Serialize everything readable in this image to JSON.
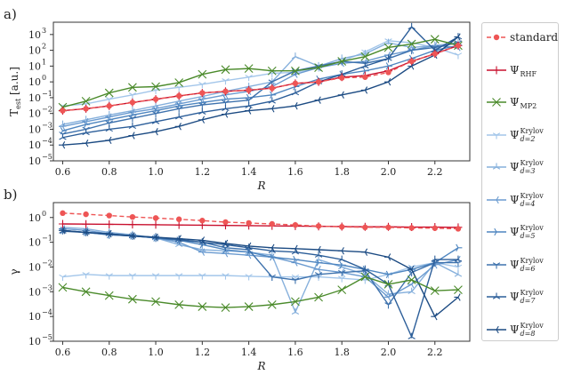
{
  "chart_data": [
    {
      "panel_label": "a)",
      "type": "line",
      "ylabel": "T",
      "ylabel_sub": "est",
      "ylabel_unit": "[a.u.]",
      "xlabel": "R",
      "yscale": "log",
      "ylim": [
        1e-05,
        6000
      ],
      "xlim": [
        0.56,
        2.35
      ],
      "xticks": [
        "0.6",
        "0.8",
        "1.0",
        "1.2",
        "1.4",
        "1.6",
        "1.8",
        "2.0",
        "2.2"
      ],
      "yticks": [
        "10",
        "10",
        "10",
        "10",
        "10",
        "10",
        "10",
        "10",
        "10"
      ],
      "ytick_exponents": [
        "−5",
        "−4",
        "−3",
        "−2",
        "−1",
        "0",
        "1",
        "2",
        "3"
      ],
      "x": [
        0.6,
        0.7,
        0.8,
        0.9,
        1.0,
        1.1,
        1.2,
        1.3,
        1.4,
        1.5,
        1.6,
        1.7,
        1.8,
        1.9,
        2.0,
        2.1,
        2.2,
        2.3
      ],
      "series": [
        {
          "name": "standard",
          "values": [
            0.015,
            0.02,
            0.03,
            0.05,
            0.08,
            0.13,
            0.2,
            0.25,
            0.3,
            0.4,
            0.8,
            1.0,
            1.8,
            2.0,
            4,
            20,
            60,
            200
          ]
        },
        {
          "name": "RHF",
          "values": [
            0.015,
            0.02,
            0.03,
            0.05,
            0.08,
            0.13,
            0.2,
            0.25,
            0.3,
            0.4,
            0.8,
            1.0,
            2,
            2.5,
            5,
            20,
            60,
            200
          ]
        },
        {
          "name": "MP2",
          "values": [
            0.025,
            0.06,
            0.2,
            0.45,
            0.5,
            0.9,
            3,
            6,
            7,
            5,
            5,
            8,
            20,
            40,
            150,
            250,
            500,
            200
          ]
        },
        {
          "name": "d2",
          "values": [
            0.03,
            0.04,
            0.08,
            0.15,
            0.3,
            0.45,
            0.7,
            1.2,
            2,
            3.5,
            4,
            8,
            20,
            80,
            400,
            300,
            150,
            50
          ]
        },
        {
          "name": "d3",
          "values": [
            0.002,
            0.004,
            0.008,
            0.015,
            0.03,
            0.06,
            0.12,
            0.25,
            0.5,
            1,
            40,
            10,
            30,
            60,
            300,
            150,
            200,
            300
          ]
        },
        {
          "name": "d4",
          "values": [
            0.0015,
            0.003,
            0.006,
            0.012,
            0.02,
            0.04,
            0.08,
            0.15,
            0.25,
            0.5,
            3,
            8,
            15,
            20,
            50,
            100,
            200,
            150
          ]
        },
        {
          "name": "d5",
          "values": [
            0.0008,
            0.002,
            0.004,
            0.008,
            0.015,
            0.03,
            0.05,
            0.08,
            0.1,
            0.15,
            0.5,
            1.5,
            3,
            5,
            10,
            30,
            100,
            200
          ]
        },
        {
          "name": "d6",
          "values": [
            0.0005,
            0.001,
            0.0025,
            0.005,
            0.01,
            0.02,
            0.035,
            0.05,
            0.07,
            1.0,
            5,
            10,
            20,
            15,
            30,
            100,
            150,
            300
          ]
        },
        {
          "name": "d7",
          "values": [
            0.0003,
            0.0006,
            0.001,
            0.0015,
            0.003,
            0.006,
            0.012,
            0.02,
            0.03,
            0.06,
            0.2,
            1,
            3,
            10,
            30,
            3000,
            100,
            700
          ]
        },
        {
          "name": "d8",
          "values": [
            0.0001,
            0.00013,
            0.0002,
            0.0004,
            0.0007,
            0.0015,
            0.004,
            0.009,
            0.015,
            0.02,
            0.03,
            0.07,
            0.15,
            0.3,
            1,
            10,
            50,
            700
          ]
        }
      ]
    },
    {
      "panel_label": "b)",
      "type": "line",
      "ylabel": "γ",
      "xlabel": "R",
      "yscale": "log",
      "ylim": [
        1e-05,
        4
      ],
      "xlim": [
        0.56,
        2.35
      ],
      "xticks": [
        "0.6",
        "0.8",
        "1.0",
        "1.2",
        "1.4",
        "1.6",
        "1.8",
        "2.0",
        "2.2"
      ],
      "yticks": [
        "10",
        "10",
        "10",
        "10",
        "10",
        "10"
      ],
      "ytick_exponents": [
        "−5",
        "−4",
        "−3",
        "−2",
        "−1",
        "0"
      ],
      "x": [
        0.6,
        0.7,
        0.8,
        0.9,
        1.0,
        1.1,
        1.2,
        1.3,
        1.4,
        1.5,
        1.6,
        1.7,
        1.8,
        1.9,
        2.0,
        2.1,
        2.2,
        2.3
      ],
      "series": [
        {
          "name": "standard",
          "values": [
            1.5,
            1.35,
            1.2,
            1.05,
            0.95,
            0.85,
            0.75,
            0.65,
            0.6,
            0.55,
            0.5,
            0.45,
            0.42,
            0.4,
            0.4,
            0.38,
            0.37,
            0.35
          ]
        },
        {
          "name": "RHF",
          "values": [
            0.55,
            0.54,
            0.53,
            0.52,
            0.51,
            0.5,
            0.49,
            0.48,
            0.47,
            0.46,
            0.45,
            0.44,
            0.43,
            0.42,
            0.42,
            0.41,
            0.41,
            0.4
          ]
        },
        {
          "name": "MP2",
          "values": [
            0.0015,
            0.001,
            0.0007,
            0.0005,
            0.0004,
            0.0003,
            0.00025,
            0.00023,
            0.00025,
            0.0003,
            0.0004,
            0.0006,
            0.0012,
            0.004,
            0.002,
            0.003,
            0.0011,
            0.0012
          ]
        },
        {
          "name": "d2",
          "values": [
            0.004,
            0.005,
            0.0045,
            0.0045,
            0.0045,
            0.0045,
            0.0045,
            0.0045,
            0.0042,
            0.004,
            0.004,
            0.004,
            0.0035,
            0.003,
            0.005,
            0.01,
            0.015,
            0.01
          ]
        },
        {
          "name": "d3",
          "values": [
            0.4,
            0.35,
            0.25,
            0.2,
            0.15,
            0.08,
            0.05,
            0.045,
            0.04,
            0.03,
            0.00015,
            0.02,
            0.01,
            0.005,
            0.0008,
            0.001,
            0.015,
            0.005
          ]
        },
        {
          "name": "d4",
          "values": [
            0.35,
            0.3,
            0.22,
            0.18,
            0.15,
            0.1,
            0.04,
            0.035,
            0.03,
            0.025,
            0.015,
            0.008,
            0.006,
            0.004,
            0.0006,
            0.002,
            0.012,
            0.02
          ]
        },
        {
          "name": "d5",
          "values": [
            0.3,
            0.25,
            0.2,
            0.18,
            0.15,
            0.12,
            0.08,
            0.05,
            0.04,
            0.025,
            0.02,
            0.015,
            0.012,
            0.008,
            0.005,
            0.008,
            0.015,
            0.06
          ]
        },
        {
          "name": "d6",
          "values": [
            0.3,
            0.25,
            0.2,
            0.18,
            0.15,
            0.12,
            0.1,
            0.06,
            0.05,
            0.004,
            0.003,
            0.005,
            0.006,
            0.007,
            0.0003,
            0.006,
            0.015,
            0.015
          ]
        },
        {
          "name": "d7",
          "values": [
            0.28,
            0.25,
            0.22,
            0.18,
            0.16,
            0.13,
            0.1,
            0.08,
            0.06,
            0.045,
            0.04,
            0.03,
            0.02,
            0.008,
            0.002,
            1.5e-05,
            0.02,
            0.02
          ]
        },
        {
          "name": "d8",
          "values": [
            0.3,
            0.25,
            0.22,
            0.18,
            0.16,
            0.14,
            0.12,
            0.09,
            0.07,
            0.06,
            0.055,
            0.05,
            0.045,
            0.04,
            0.025,
            0.008,
            0.0001,
            0.0006
          ]
        }
      ]
    }
  ],
  "legend": [
    {
      "key": "standard",
      "label": "standard",
      "sub": "",
      "sup": "",
      "color": "#ee5555",
      "marker": "circle",
      "dashed": true
    },
    {
      "key": "RHF",
      "label": "Ψ",
      "sub": "RHF",
      "sup": "",
      "color": "#c8102e",
      "marker": "plus",
      "dashed": false
    },
    {
      "key": "MP2",
      "label": "Ψ",
      "sub": "MP2",
      "sup": "",
      "color": "#4a8a2a",
      "marker": "x",
      "dashed": false
    },
    {
      "key": "d2",
      "label": "Ψ",
      "sub": "d=2",
      "sup": "Krylov",
      "color": "#a3c6ea",
      "marker": "tri_down",
      "dashed": false
    },
    {
      "key": "d3",
      "label": "Ψ",
      "sub": "d=3",
      "sup": "Krylov",
      "color": "#86b0dc",
      "marker": "tri_up",
      "dashed": false
    },
    {
      "key": "d4",
      "label": "Ψ",
      "sub": "d=4",
      "sup": "Krylov",
      "color": "#6b9bd0",
      "marker": "tri_left",
      "dashed": false
    },
    {
      "key": "d5",
      "label": "Ψ",
      "sub": "d=5",
      "sup": "Krylov",
      "color": "#4f86c0",
      "marker": "tri_right",
      "dashed": false
    },
    {
      "key": "d6",
      "label": "Ψ",
      "sub": "d=6",
      "sup": "Krylov",
      "color": "#3e72ad",
      "marker": "tri_down",
      "dashed": false
    },
    {
      "key": "d7",
      "label": "Ψ",
      "sub": "d=7",
      "sup": "Krylov",
      "color": "#2c5e99",
      "marker": "tri_up",
      "dashed": false
    },
    {
      "key": "d8",
      "label": "Ψ",
      "sub": "d=8",
      "sup": "Krylov",
      "color": "#1b4a82",
      "marker": "tri_left",
      "dashed": false
    }
  ]
}
